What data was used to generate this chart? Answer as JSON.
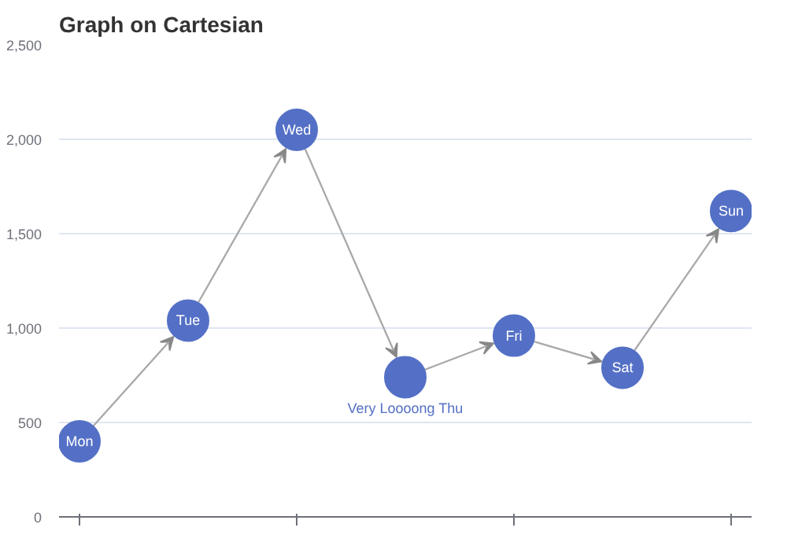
{
  "chart_data": {
    "type": "line",
    "title": "Graph on Cartesian",
    "categories": [
      "Mon",
      "Tue",
      "Wed",
      "Very Loooong Thu",
      "Fri",
      "Sat",
      "Sun"
    ],
    "series": [
      {
        "color": "#5470c6",
        "values": [
          400,
          1040,
          2050,
          740,
          960,
          790,
          1620
        ]
      }
    ],
    "ylim": [
      0,
      2500
    ],
    "yticks": [
      0,
      500,
      {
        "value": 1000,
        "label": "1,000"
      },
      {
        "value": 1500,
        "label": "1,500"
      },
      {
        "value": 2000,
        "label": "2,000"
      },
      {
        "value": 2500,
        "label": "2,500"
      }
    ],
    "grid": "y",
    "tick_labels": "y",
    "marker": "circle",
    "line_style": "solid"
  }
}
